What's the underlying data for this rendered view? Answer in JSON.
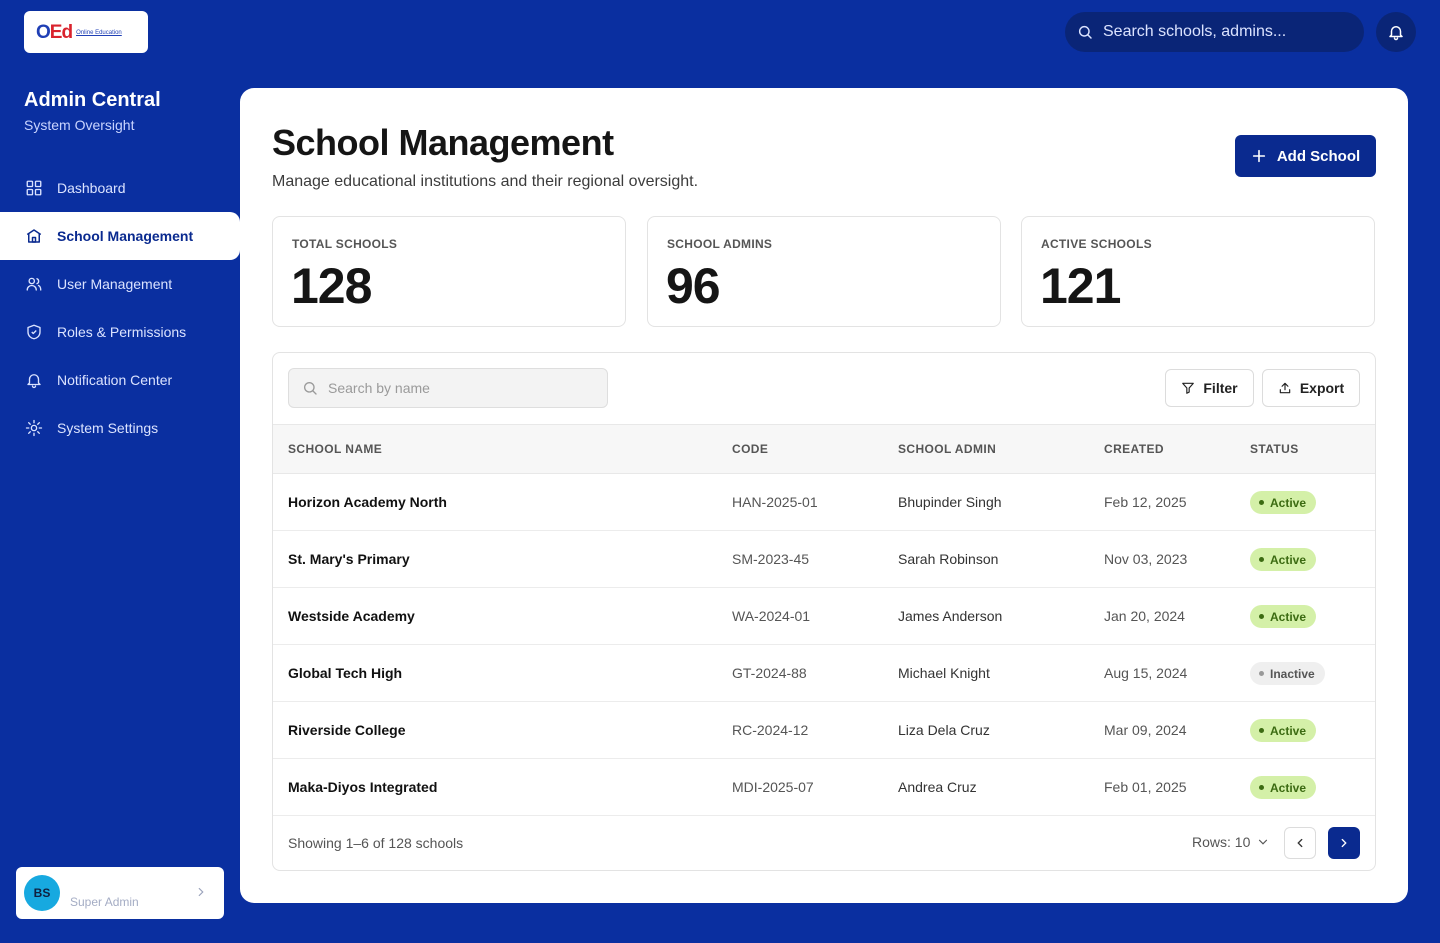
{
  "app": {
    "logo_text": "Online Education",
    "brand_title": "Admin Central",
    "brand_subtitle": "System Oversight"
  },
  "topbar": {
    "search_placeholder": "Search schools, admins..."
  },
  "sidebar": {
    "items": [
      {
        "label": "Dashboard",
        "icon": "grid-icon",
        "active": false
      },
      {
        "label": "School Management",
        "icon": "school-icon",
        "active": true
      },
      {
        "label": "User Management",
        "icon": "users-icon",
        "active": false
      },
      {
        "label": "Roles & Permissions",
        "icon": "shield-icon",
        "active": false
      },
      {
        "label": "Notification Center",
        "icon": "bell-icon",
        "active": false
      },
      {
        "label": "System Settings",
        "icon": "gear-icon",
        "active": false
      }
    ],
    "user": {
      "initials": "BS",
      "role": "Super Admin"
    }
  },
  "page": {
    "title": "School Management",
    "subtitle": "Manage educational institutions and their regional oversight.",
    "add_button": "Add School"
  },
  "stats": [
    {
      "label": "TOTAL SCHOOLS",
      "value": "128"
    },
    {
      "label": "SCHOOL ADMINS",
      "value": "96"
    },
    {
      "label": "ACTIVE SCHOOLS",
      "value": "121"
    }
  ],
  "table": {
    "search_placeholder": "Search by name",
    "filter_label": "Filter",
    "export_label": "Export",
    "columns": [
      "SCHOOL NAME",
      "CODE",
      "SCHOOL ADMIN",
      "CREATED",
      "STATUS"
    ],
    "rows": [
      {
        "name": "Horizon Academy North",
        "code": "HAN-2025-01",
        "admin": "Bhupinder Singh",
        "created": "Feb 12, 2025",
        "status": "Active"
      },
      {
        "name": "St. Mary's Primary",
        "code": "SM-2023-45",
        "admin": "Sarah Robinson",
        "created": "Nov 03, 2023",
        "status": "Active"
      },
      {
        "name": "Westside Academy",
        "code": "WA-2024-01",
        "admin": "James Anderson",
        "created": "Jan 20, 2024",
        "status": "Active"
      },
      {
        "name": "Global Tech High",
        "code": "GT-2024-88",
        "admin": "Michael Knight",
        "created": "Aug 15, 2024",
        "status": "Inactive"
      },
      {
        "name": "Riverside College",
        "code": "RC-2024-12",
        "admin": "Liza Dela Cruz",
        "created": "Mar 09, 2024",
        "status": "Active"
      },
      {
        "name": "Maka-Diyos Integrated",
        "code": "MDI-2025-07",
        "admin": "Andrea Cruz",
        "created": "Feb 01, 2025",
        "status": "Active"
      }
    ],
    "footer_text": "Showing 1–6 of 128 schools",
    "rows_per_page": "Rows: 10"
  },
  "colors": {
    "brand": "#0a2fa0",
    "primary": "#0a2a8f",
    "active_badge": "#d4f0a8",
    "avatar": "#17a9e0"
  }
}
